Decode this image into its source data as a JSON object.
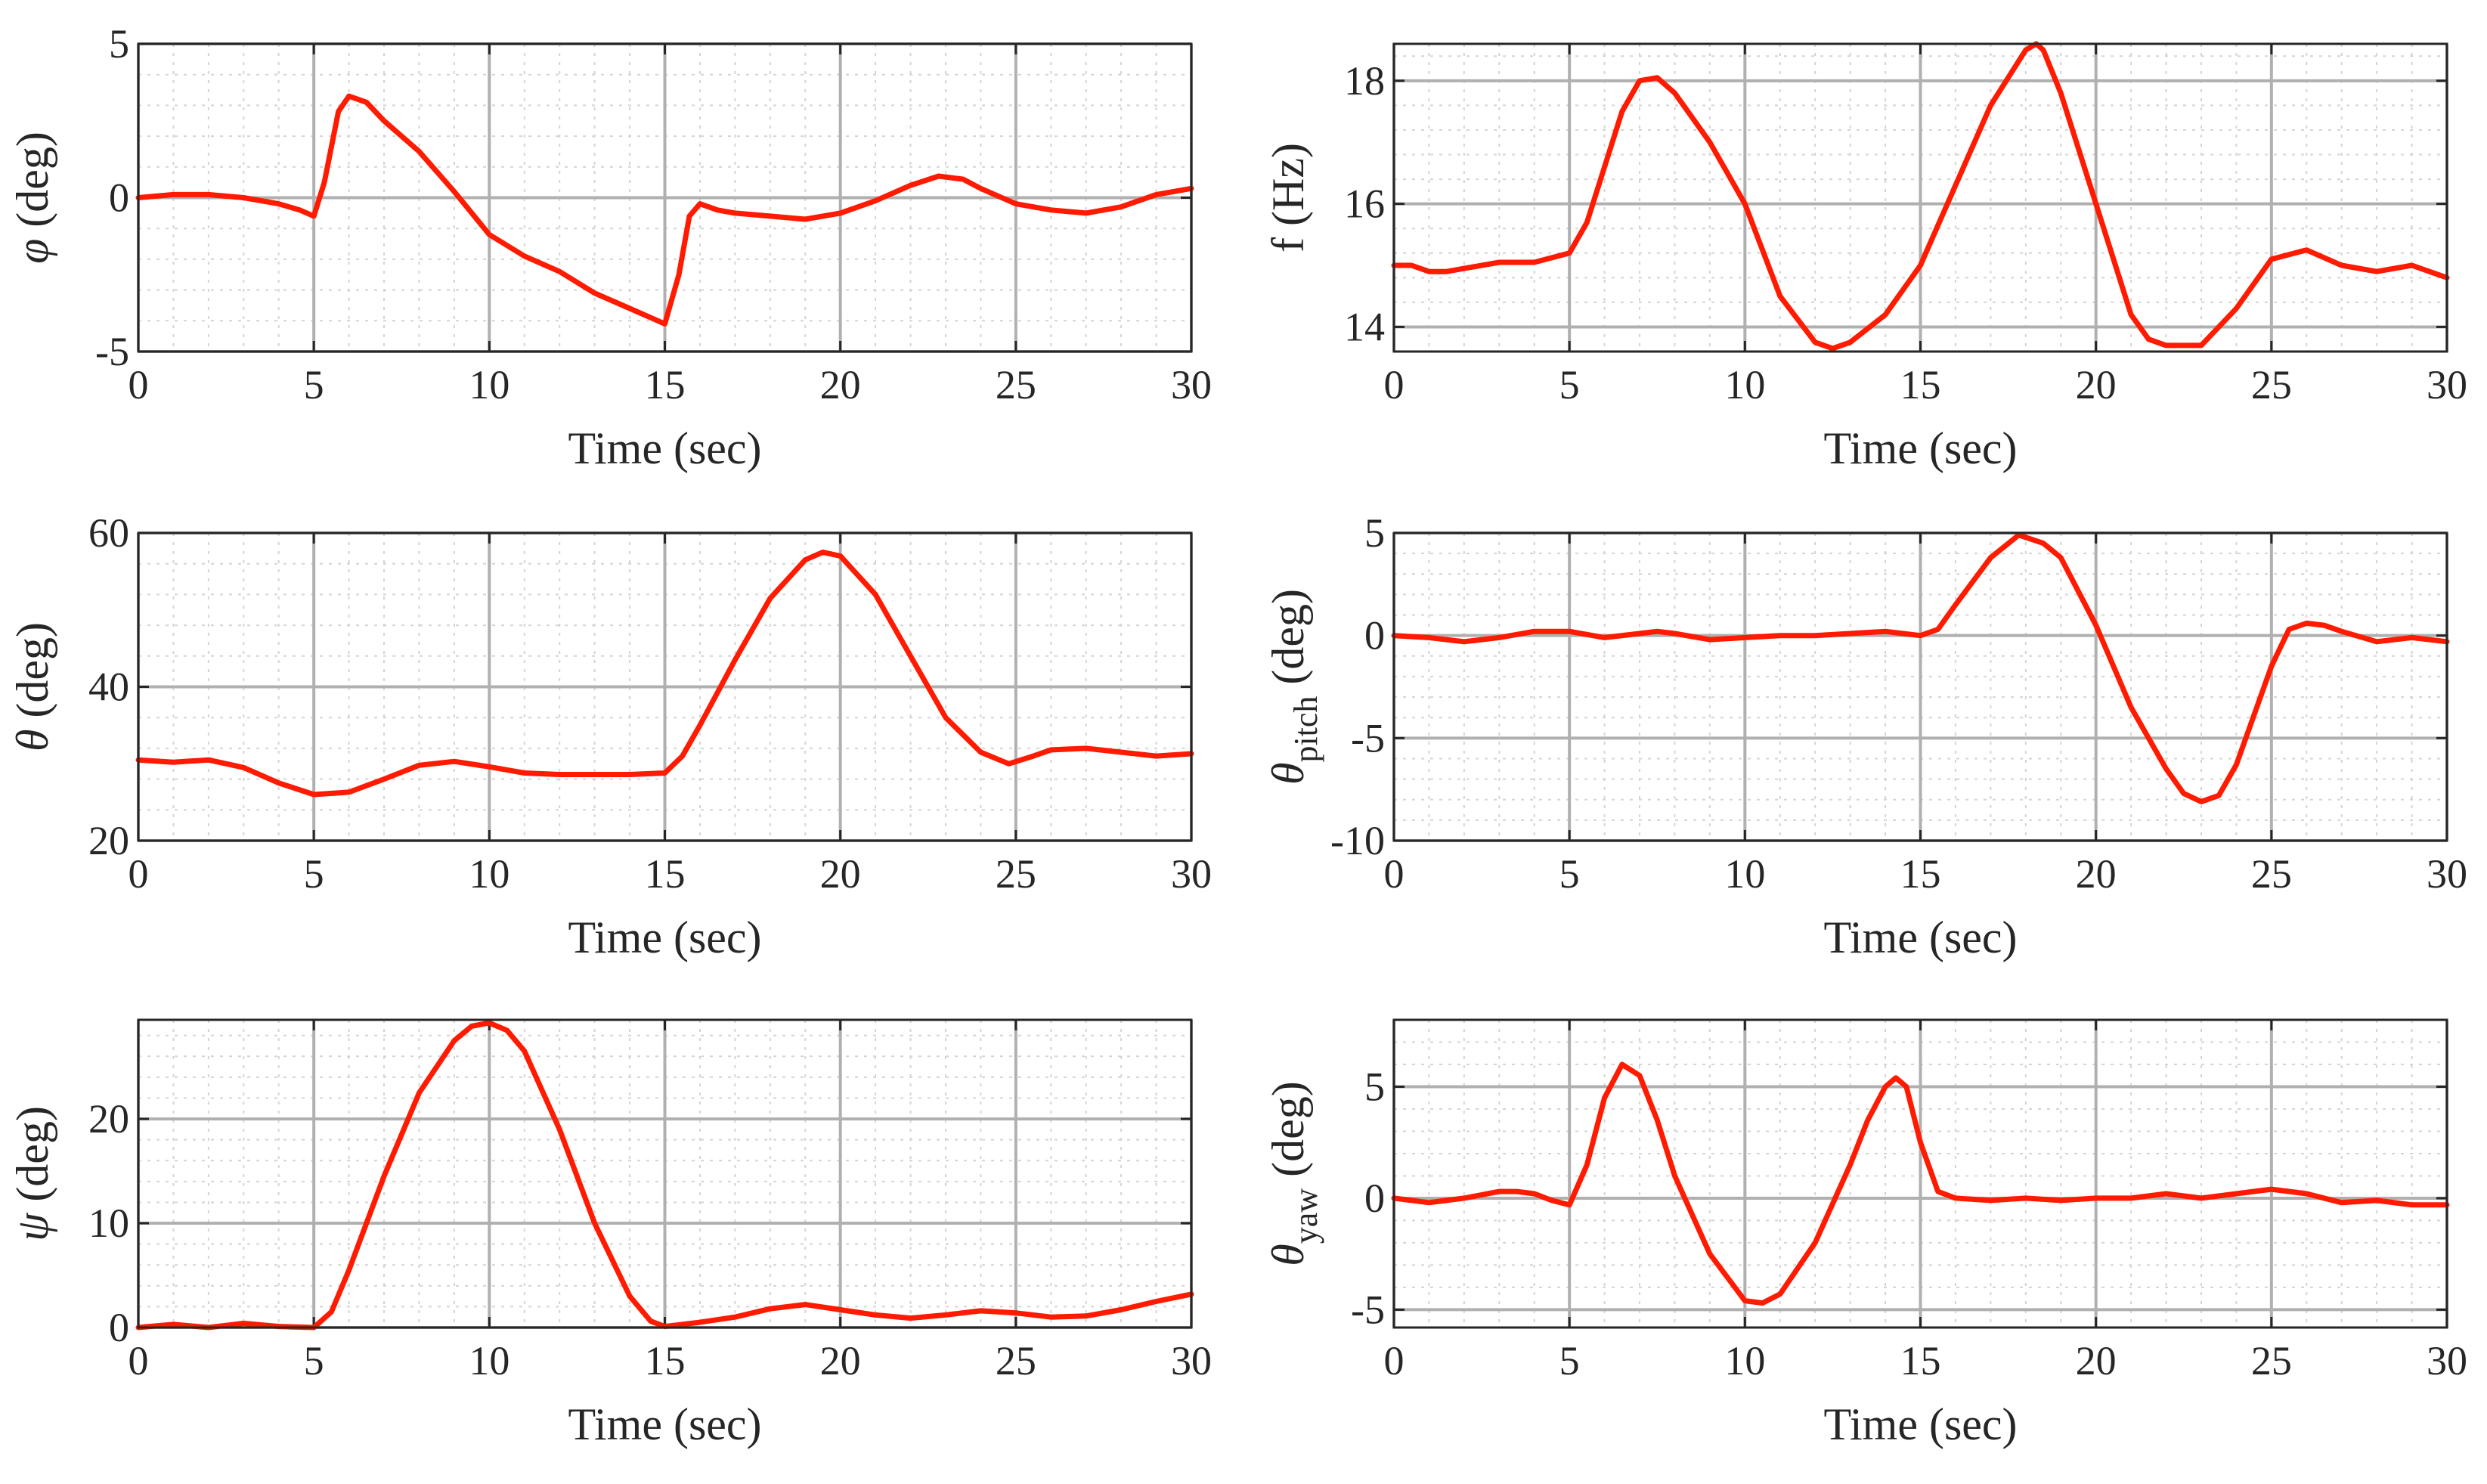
{
  "chart_data": [
    {
      "type": "line",
      "title": "",
      "xlabel": "Time (sec)",
      "ylabel": {
        "symbol": "φ",
        "subscript": "",
        "unit": "(deg)"
      },
      "xlim": [
        0,
        30
      ],
      "ylim": [
        -5,
        5
      ],
      "xticks": [
        "0",
        "5",
        "10",
        "15",
        "20",
        "25",
        "30"
      ],
      "yticks": [
        "-5",
        "0",
        "5"
      ],
      "grid": true,
      "series": [
        {
          "name": "phi",
          "color": "#ff1a00",
          "x": [
            0,
            1,
            2,
            3,
            4,
            4.6,
            5,
            5.3,
            5.7,
            6,
            6.5,
            7,
            8,
            9,
            10,
            11,
            12,
            13,
            14,
            14.6,
            15,
            15.4,
            15.7,
            16,
            16.5,
            17,
            18,
            19,
            20,
            21,
            22,
            22.8,
            23.5,
            24,
            25,
            26,
            27,
            28,
            29,
            30
          ],
          "y": [
            0,
            0.1,
            0.1,
            0,
            -0.2,
            -0.4,
            -0.6,
            0.5,
            2.8,
            3.3,
            3.1,
            2.5,
            1.5,
            0.2,
            -1.2,
            -1.9,
            -2.4,
            -3.1,
            -3.6,
            -3.9,
            -4.1,
            -2.5,
            -0.6,
            -0.2,
            -0.4,
            -0.5,
            -0.6,
            -0.7,
            -0.5,
            -0.1,
            0.4,
            0.7,
            0.6,
            0.3,
            -0.2,
            -0.4,
            -0.5,
            -0.3,
            0.1,
            0.3
          ]
        }
      ]
    },
    {
      "type": "line",
      "title": "",
      "xlabel": "Time (sec)",
      "ylabel": {
        "symbol": "f",
        "subscript": "",
        "unit": "(Hz)"
      },
      "xlim": [
        0,
        30
      ],
      "ylim": [
        13.6,
        18.6
      ],
      "xticks": [
        "0",
        "5",
        "10",
        "15",
        "20",
        "25",
        "30"
      ],
      "yticks": [
        "14",
        "16",
        "18"
      ],
      "grid": true,
      "series": [
        {
          "name": "f",
          "color": "#ff1a00",
          "x": [
            0,
            0.5,
            1,
            1.5,
            2,
            3,
            4,
            5,
            5.5,
            6,
            6.5,
            7,
            7.5,
            8,
            9,
            10,
            11,
            12,
            12.5,
            13,
            14,
            15,
            16,
            17,
            18,
            18.3,
            18.5,
            19,
            20,
            21,
            21.5,
            22,
            23,
            24,
            25,
            26,
            27,
            28,
            29,
            30
          ],
          "y": [
            15.0,
            15.0,
            14.9,
            14.9,
            14.95,
            15.05,
            15.05,
            15.2,
            15.7,
            16.6,
            17.5,
            18.0,
            18.05,
            17.8,
            17.0,
            16.0,
            14.5,
            13.75,
            13.65,
            13.75,
            14.2,
            15.0,
            16.3,
            17.6,
            18.5,
            18.6,
            18.5,
            17.8,
            16.0,
            14.2,
            13.8,
            13.7,
            13.7,
            14.3,
            15.1,
            15.25,
            15.0,
            14.9,
            15.0,
            14.8
          ]
        }
      ]
    },
    {
      "type": "line",
      "title": "",
      "xlabel": "Time (sec)",
      "ylabel": {
        "symbol": "θ",
        "subscript": "",
        "unit": "(deg)"
      },
      "xlim": [
        0,
        30
      ],
      "ylim": [
        20,
        60
      ],
      "xticks": [
        "0",
        "5",
        "10",
        "15",
        "20",
        "25",
        "30"
      ],
      "yticks": [
        "20",
        "40",
        "60"
      ],
      "grid": true,
      "series": [
        {
          "name": "theta",
          "color": "#ff1a00",
          "x": [
            0,
            1,
            2,
            3,
            4,
            5,
            6,
            7,
            8,
            9,
            10,
            11,
            12,
            13,
            14,
            15,
            15.5,
            16,
            17,
            18,
            19,
            19.5,
            20,
            21,
            22,
            23,
            24,
            24.8,
            25.5,
            26,
            27,
            28,
            29,
            30
          ],
          "y": [
            30.5,
            30.2,
            30.5,
            29.5,
            27.5,
            26.0,
            26.3,
            28.0,
            29.8,
            30.3,
            29.6,
            28.8,
            28.6,
            28.6,
            28.6,
            28.8,
            31.0,
            35.0,
            43.5,
            51.5,
            56.5,
            57.5,
            57.0,
            52.0,
            44.0,
            36.0,
            31.5,
            30.0,
            31.0,
            31.8,
            32.0,
            31.5,
            31.0,
            31.3
          ]
        }
      ]
    },
    {
      "type": "line",
      "title": "",
      "xlabel": "Time (sec)",
      "ylabel": {
        "symbol": "θ",
        "subscript": "pitch",
        "unit": "(deg)"
      },
      "xlim": [
        0,
        30
      ],
      "ylim": [
        -10,
        5
      ],
      "xticks": [
        "0",
        "5",
        "10",
        "15",
        "20",
        "25",
        "30"
      ],
      "yticks": [
        "-10",
        "-5",
        "0",
        "5"
      ],
      "grid": true,
      "series": [
        {
          "name": "theta_pitch",
          "color": "#ff1a00",
          "x": [
            0,
            1,
            2,
            3,
            4,
            5,
            6,
            7,
            7.5,
            8,
            9,
            10,
            11,
            12,
            13,
            14,
            14.5,
            15,
            15.5,
            16,
            17,
            17.8,
            18.5,
            19,
            20,
            21,
            22,
            22.5,
            23,
            23.5,
            24,
            25,
            25.5,
            26,
            26.5,
            27,
            28,
            29,
            30
          ],
          "y": [
            0,
            -0.1,
            -0.3,
            -0.1,
            0.2,
            0.2,
            -0.1,
            0.1,
            0.2,
            0.1,
            -0.2,
            -0.1,
            0,
            0,
            0.1,
            0.2,
            0.1,
            0,
            0.3,
            1.5,
            3.8,
            4.9,
            4.5,
            3.8,
            0.5,
            -3.5,
            -6.5,
            -7.7,
            -8.1,
            -7.8,
            -6.3,
            -1.5,
            0.3,
            0.6,
            0.5,
            0.2,
            -0.3,
            -0.1,
            -0.3
          ]
        }
      ]
    },
    {
      "type": "line",
      "title": "",
      "xlabel": "Time (sec)",
      "ylabel": {
        "symbol": "ψ",
        "subscript": "",
        "unit": "(deg)"
      },
      "xlim": [
        0,
        30
      ],
      "ylim": [
        0,
        29.5
      ],
      "xticks": [
        "0",
        "5",
        "10",
        "15",
        "20",
        "25",
        "30"
      ],
      "yticks": [
        "0",
        "10",
        "20"
      ],
      "grid": true,
      "series": [
        {
          "name": "psi",
          "color": "#ff1a00",
          "x": [
            0,
            1,
            2,
            3,
            4,
            5,
            5.5,
            6,
            7,
            8,
            9,
            9.5,
            10,
            10.5,
            11,
            12,
            13,
            14,
            14.6,
            15,
            16,
            17,
            18,
            19,
            20,
            21,
            22,
            23,
            24,
            25,
            26,
            27,
            28,
            29,
            30
          ],
          "y": [
            0,
            0.3,
            0,
            0.4,
            0.1,
            0,
            1.5,
            5.5,
            14.5,
            22.5,
            27.5,
            28.9,
            29.2,
            28.5,
            26.5,
            19.0,
            10.0,
            3.0,
            0.6,
            0.1,
            0.5,
            1.0,
            1.8,
            2.2,
            1.7,
            1.2,
            0.9,
            1.2,
            1.6,
            1.4,
            1.0,
            1.1,
            1.7,
            2.5,
            3.2
          ]
        }
      ]
    },
    {
      "type": "line",
      "title": "",
      "xlabel": "Time (sec)",
      "ylabel": {
        "symbol": "θ",
        "subscript": "yaw",
        "unit": "(deg)"
      },
      "xlim": [
        0,
        30
      ],
      "ylim": [
        -5.8,
        8
      ],
      "xticks": [
        "0",
        "5",
        "10",
        "15",
        "20",
        "25",
        "30"
      ],
      "yticks": [
        "-5",
        "0",
        "5"
      ],
      "grid": true,
      "series": [
        {
          "name": "theta_yaw",
          "color": "#ff1a00",
          "x": [
            0,
            1,
            2,
            3,
            3.5,
            4,
            4.5,
            5,
            5.5,
            6,
            6.5,
            7,
            7.5,
            8,
            9,
            10,
            10.5,
            11,
            12,
            13,
            13.5,
            14,
            14.3,
            14.6,
            15,
            15.5,
            16,
            17,
            18,
            19,
            20,
            21,
            22,
            23,
            24,
            25,
            26,
            27,
            28,
            29,
            30
          ],
          "y": [
            0,
            -0.2,
            0,
            0.3,
            0.3,
            0.2,
            -0.1,
            -0.3,
            1.5,
            4.5,
            6.0,
            5.5,
            3.5,
            1.0,
            -2.5,
            -4.6,
            -4.7,
            -4.3,
            -2.0,
            1.5,
            3.5,
            5.0,
            5.4,
            5.0,
            2.5,
            0.3,
            0,
            -0.1,
            0,
            -0.1,
            0,
            0,
            0.2,
            0,
            0.2,
            0.4,
            0.2,
            -0.2,
            -0.1,
            -0.3,
            -0.3
          ]
        }
      ]
    }
  ]
}
